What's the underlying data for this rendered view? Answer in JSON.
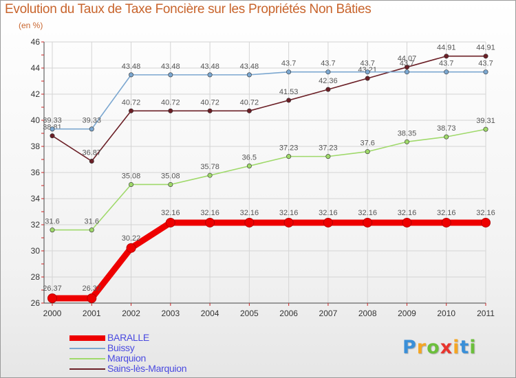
{
  "header": {
    "title": "Evolution du Taux de Taxe Foncière sur les Propriétés Non Bâties",
    "unit": "(en %)"
  },
  "chart_data": {
    "type": "line",
    "title": "Evolution du Taux de Taxe Foncière sur les Propriétés Non Bâties",
    "ylabel": "(en %)",
    "xlabel": "",
    "x": [
      "2000",
      "2001",
      "2002",
      "2003",
      "2004",
      "2005",
      "2006",
      "2007",
      "2008",
      "2009",
      "2010",
      "2011"
    ],
    "ylim": [
      26,
      46
    ],
    "yticks": [
      26,
      28,
      30,
      32,
      34,
      36,
      38,
      40,
      42,
      44,
      46
    ],
    "grid": true,
    "legend_position": "bottom-left",
    "series": [
      {
        "name": "Sains-lès-Marquion",
        "color": "#6b1f26",
        "values": [
          38.81,
          36.87,
          40.72,
          40.72,
          40.72,
          40.72,
          41.53,
          42.36,
          43.21,
          44.07,
          44.91,
          44.91
        ],
        "labels": [
          "38.81",
          "36.87",
          "40.72",
          "40.72",
          "40.72",
          "40.72",
          "41.53",
          "42.36",
          "43.21",
          "44.07",
          "44.91",
          "44.91"
        ]
      },
      {
        "name": "Marquion",
        "color": "#9fd96a",
        "values": [
          31.6,
          31.6,
          35.08,
          35.08,
          35.78,
          36.5,
          37.23,
          37.23,
          37.6,
          38.35,
          38.73,
          39.31
        ],
        "labels": [
          "31.6",
          "31.6",
          "35.08",
          "35.08",
          "35.78",
          "36.5",
          "37.23",
          "37.23",
          "37.6",
          "38.35",
          "38.73",
          "39.31"
        ]
      },
      {
        "name": "Buissy",
        "color": "#7ba7d0",
        "values": [
          39.33,
          39.33,
          43.48,
          43.48,
          43.48,
          43.48,
          43.7,
          43.7,
          43.7,
          43.7,
          43.7,
          43.7
        ],
        "labels": [
          "39.33",
          "39.33",
          "43.48",
          "43.48",
          "43.48",
          "43.48",
          "43.7",
          "43.7",
          "43.7",
          "43.7",
          "43.7",
          "43.7"
        ]
      },
      {
        "name": "BARALLE",
        "color": "#ee0000",
        "values": [
          26.37,
          26.37,
          30.22,
          32.16,
          32.16,
          32.16,
          32.16,
          32.16,
          32.16,
          32.16,
          32.16,
          32.16
        ],
        "labels": [
          "26.37",
          "26.37",
          "30.22",
          "32.16",
          "32.16",
          "32.16",
          "32.16",
          "32.16",
          "32.16",
          "32.16",
          "32.16",
          "32.16"
        ]
      }
    ]
  },
  "legend": {
    "items": [
      {
        "label": "BARALLE",
        "color": "#ee0000"
      },
      {
        "label": "Buissy",
        "color": "#7ba7d0"
      },
      {
        "label": "Marquion",
        "color": "#9fd96a"
      },
      {
        "label": "Sains-lès-Marquion",
        "color": "#6b1f26"
      }
    ]
  },
  "logo": {
    "letters": [
      "P",
      "r",
      "o",
      "x",
      "i",
      "t",
      "i"
    ],
    "colors": [
      "#3a8fd8",
      "#f5a623",
      "#6cbf3c",
      "#e8352e",
      "#f5a623",
      "#3a8fd8",
      "#6cbf3c"
    ]
  }
}
